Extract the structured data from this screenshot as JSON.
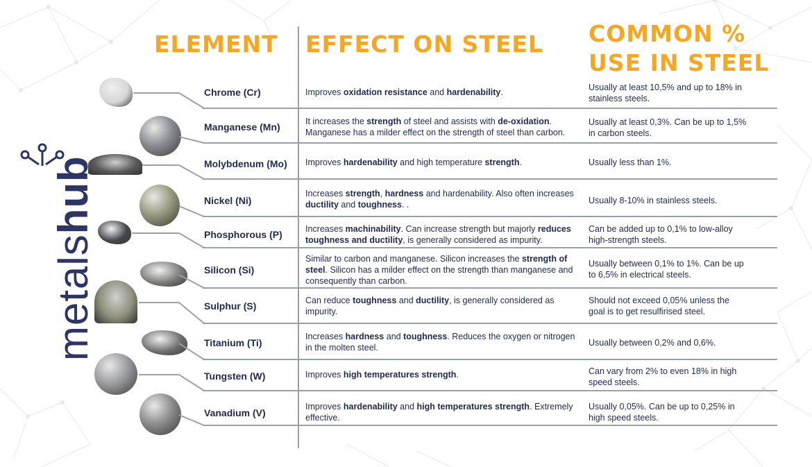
{
  "brand": {
    "light": "metals",
    "bold": "hub"
  },
  "headers": {
    "element": "ELEMENT",
    "effect": "EFFECT ON STEEL",
    "common_line1": "COMMON %",
    "common_line2": "USE IN STEEL"
  },
  "colors": {
    "accent": "#f5a623",
    "text": "#1f2a4a",
    "line": "#9aa0a8",
    "logo": "#2c3563"
  },
  "rows": [
    {
      "element": "Chrome (Cr)",
      "effect_html": "Improves <b>oxidation resistance</b> and <b>hardenability</b>.",
      "use": "Usually at least 10,5% and up to 18% in stainless steels."
    },
    {
      "element": "Manganese (Mn)",
      "effect_html": "It increases the <b>strength</b> of steel and assists with <b>de-oxidation</b>. Manganese has a milder effect on the strength of steel than carbon.",
      "use": "Usually at least 0,3%. Can be up to 1,5% in carbon steels."
    },
    {
      "element": "Molybdenum (Mo)",
      "effect_html": "Improves <b>hardenability</b> and high temperature <b>strength</b>.",
      "use": "Usually less than 1%."
    },
    {
      "element": "Nickel (Ni)",
      "effect_html": "Increases <b>strength</b>, <b>hardness</b> and hardenability. Also often increases <b>ductility</b> and <b>toughness</b>. .",
      "use": "Usually 8-10% in stainless steels."
    },
    {
      "element": "Phosphorous (P)",
      "effect_html": "Increases <b>machinability</b>. Can increase strength but majorly <b>reduces toughness and ductility</b>, is generally considered as impurity.",
      "use": "Can be added up to 0,1% to low-alloy high-strength steels."
    },
    {
      "element": "Silicon (Si)",
      "effect_html": "Similar to carbon and manganese. Silicon increases the <b>strength of steel</b>. Silicon has a milder effect on the strength than manganese and consequently than carbon.",
      "use": "Usually between 0,1% to 1%. Can be up to 6,5% in electrical steels."
    },
    {
      "element": "Sulphur (S)",
      "effect_html": "Can reduce <b>toughness</b> and <b>ductility</b>, is generally considered as impurity.",
      "use": "Should not exceed 0,05% unless the goal is to get resulfirised steel."
    },
    {
      "element": "Titanium (Ti)",
      "effect_html": "Increases <b>hardness</b> and <b>toughness</b>. Reduces the oxygen or nitrogen in the molten steel.",
      "use": "Usually between 0,2% and 0,6%."
    },
    {
      "element": "Tungsten (W)",
      "effect_html": "Improves <b>high temperatures strength</b>.",
      "use": "Can vary from 2% to even 18% in high speed steels."
    },
    {
      "element": "Vanadium (V)",
      "effect_html": "Improves <b>hardenability</b> and <b>high temperatures strength</b>. Extremely effective.",
      "use": "Usually 0,05%. Can be up to 0,25% in high speed steels."
    }
  ]
}
